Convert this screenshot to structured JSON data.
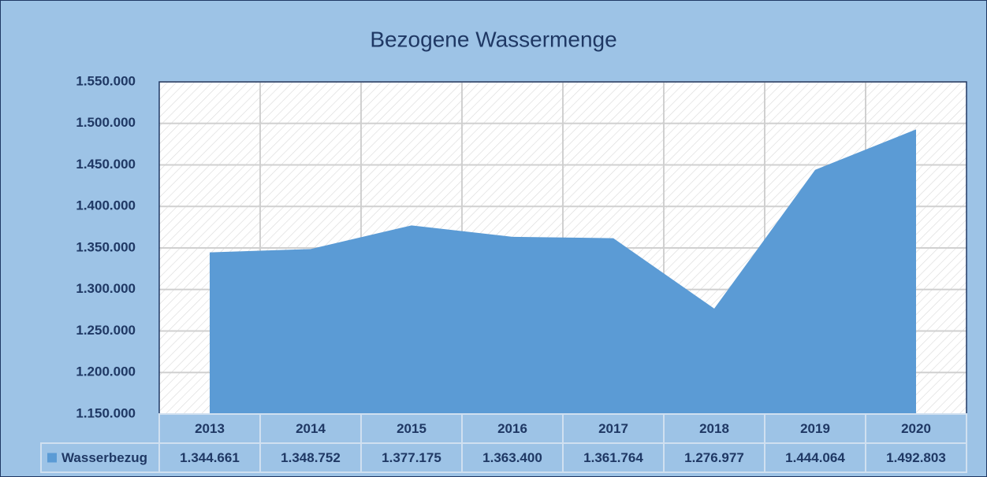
{
  "chart_data": {
    "type": "area",
    "title": "Bezogene Wassermenge",
    "categories": [
      "2013",
      "2014",
      "2015",
      "2016",
      "2017",
      "2018",
      "2019",
      "2020"
    ],
    "series": [
      {
        "name": "Wasserbezug",
        "color": "#5b9bd5",
        "values": [
          1344661,
          1348752,
          1377175,
          1363400,
          1361764,
          1276977,
          1444064,
          1492803
        ],
        "value_labels": [
          "1.344.661",
          "1.348.752",
          "1.377.175",
          "1.363.400",
          "1.361.764",
          "1.276.977",
          "1.444.064",
          "1.492.803"
        ]
      }
    ],
    "ylim": [
      1150000,
      1550000
    ],
    "yticks": [
      {
        "value": 1150000,
        "label": "1.150.000"
      },
      {
        "value": 1200000,
        "label": "1.200.000"
      },
      {
        "value": 1250000,
        "label": "1.250.000"
      },
      {
        "value": 1300000,
        "label": "1.300.000"
      },
      {
        "value": 1350000,
        "label": "1.350.000"
      },
      {
        "value": 1400000,
        "label": "1.400.000"
      },
      {
        "value": 1450000,
        "label": "1.450.000"
      },
      {
        "value": 1500000,
        "label": "1.500.000"
      },
      {
        "value": 1550000,
        "label": "1.550.000"
      }
    ],
    "grid": true,
    "data_table": true
  }
}
